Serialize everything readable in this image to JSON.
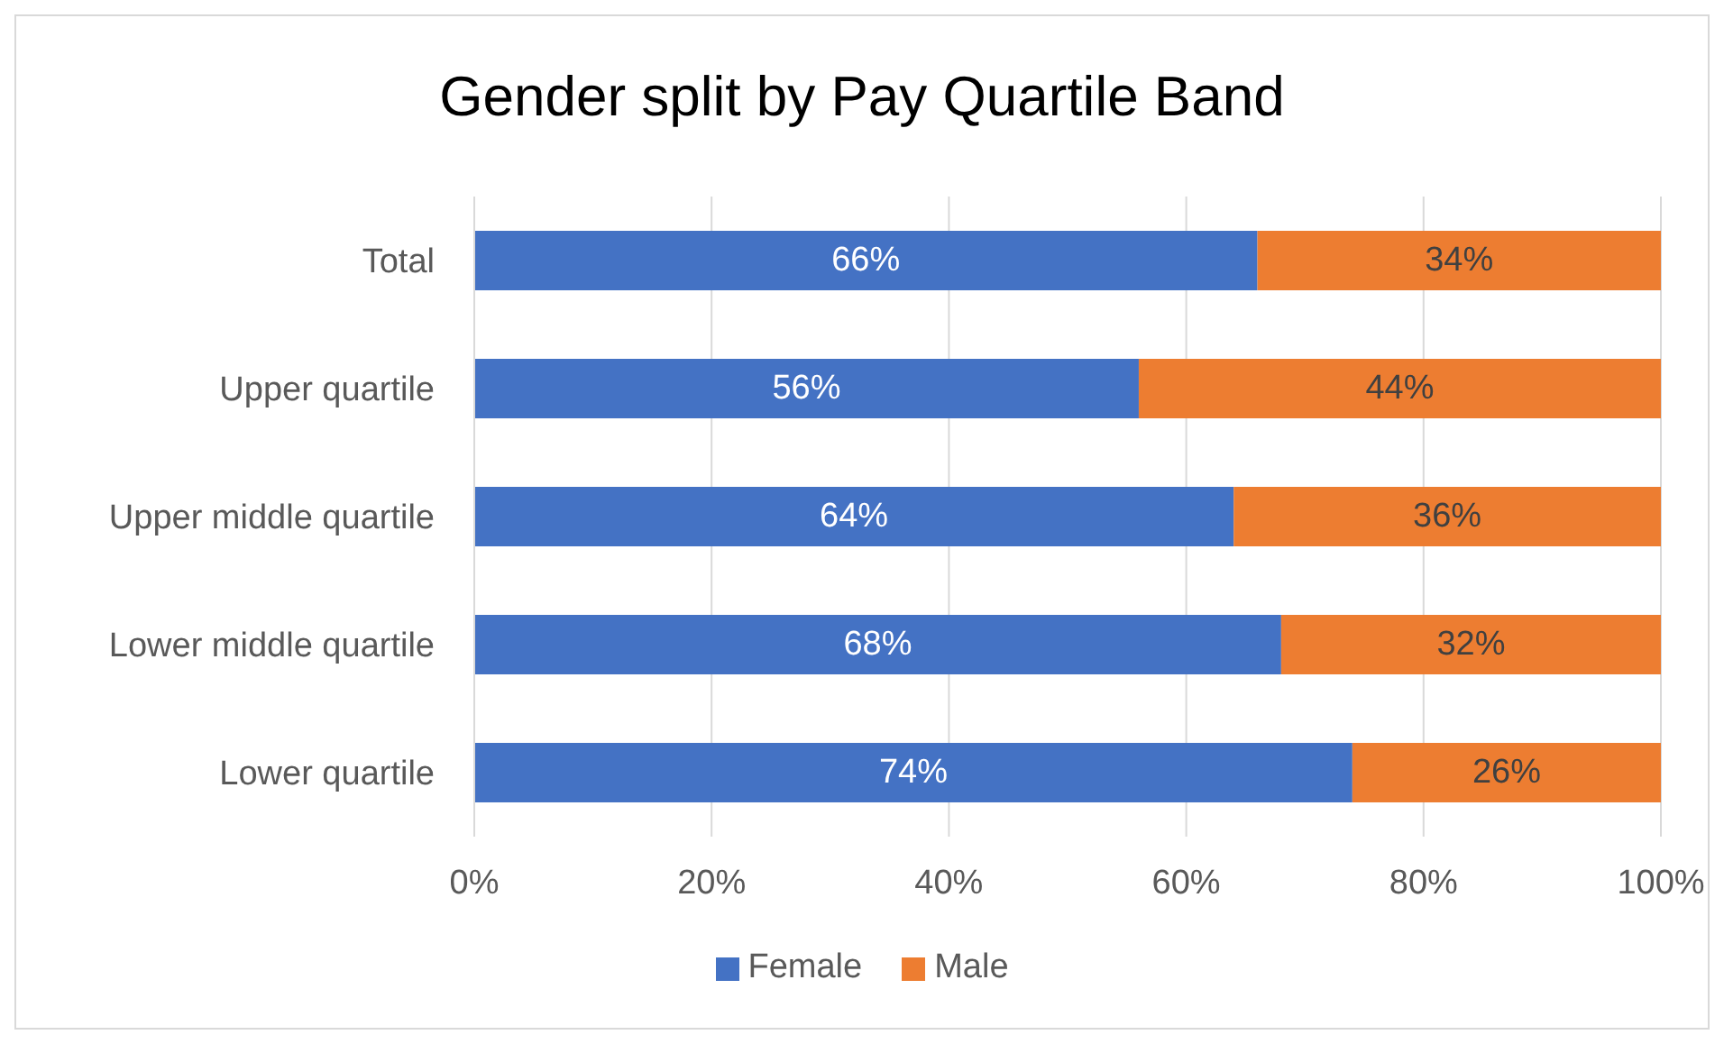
{
  "chart_data": {
    "type": "bar",
    "orientation": "horizontal",
    "stacked": true,
    "title": "Gender split by Pay Quartile Band",
    "categories": [
      "Total",
      "Upper quartile",
      "Upper middle quartile",
      "Lower middle quartile",
      "Lower quartile"
    ],
    "series": [
      {
        "name": "Female",
        "color": "#4472c4",
        "values": [
          66,
          56,
          64,
          68,
          74
        ],
        "value_labels": [
          "66%",
          "56%",
          "64%",
          "68%",
          "74%"
        ]
      },
      {
        "name": "Male",
        "color": "#ed7d31",
        "values": [
          34,
          44,
          36,
          32,
          26
        ],
        "value_labels": [
          "34%",
          "44%",
          "36%",
          "32%",
          "26%"
        ]
      }
    ],
    "xlim": [
      0,
      100
    ],
    "xticks": [
      {
        "value": 0,
        "label": "0%"
      },
      {
        "value": 20,
        "label": "20%"
      },
      {
        "value": 40,
        "label": "40%"
      },
      {
        "value": 60,
        "label": "60%"
      },
      {
        "value": 80,
        "label": "80%"
      },
      {
        "value": 100,
        "label": "100%"
      }
    ],
    "grid": "x",
    "legend": "bottom"
  }
}
